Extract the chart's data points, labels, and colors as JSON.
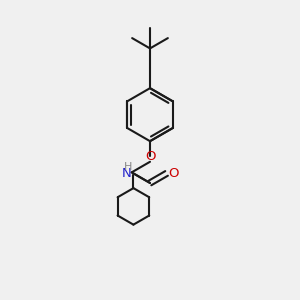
{
  "background_color": "#f0f0f0",
  "bond_color": "#1a1a1a",
  "oxygen_color": "#cc0000",
  "nitrogen_color": "#2222cc",
  "hydrogen_color": "#888888",
  "line_width": 1.5,
  "figsize": [
    3.0,
    3.0
  ],
  "dpi": 100,
  "xlim": [
    0,
    10
  ],
  "ylim": [
    0,
    10
  ]
}
